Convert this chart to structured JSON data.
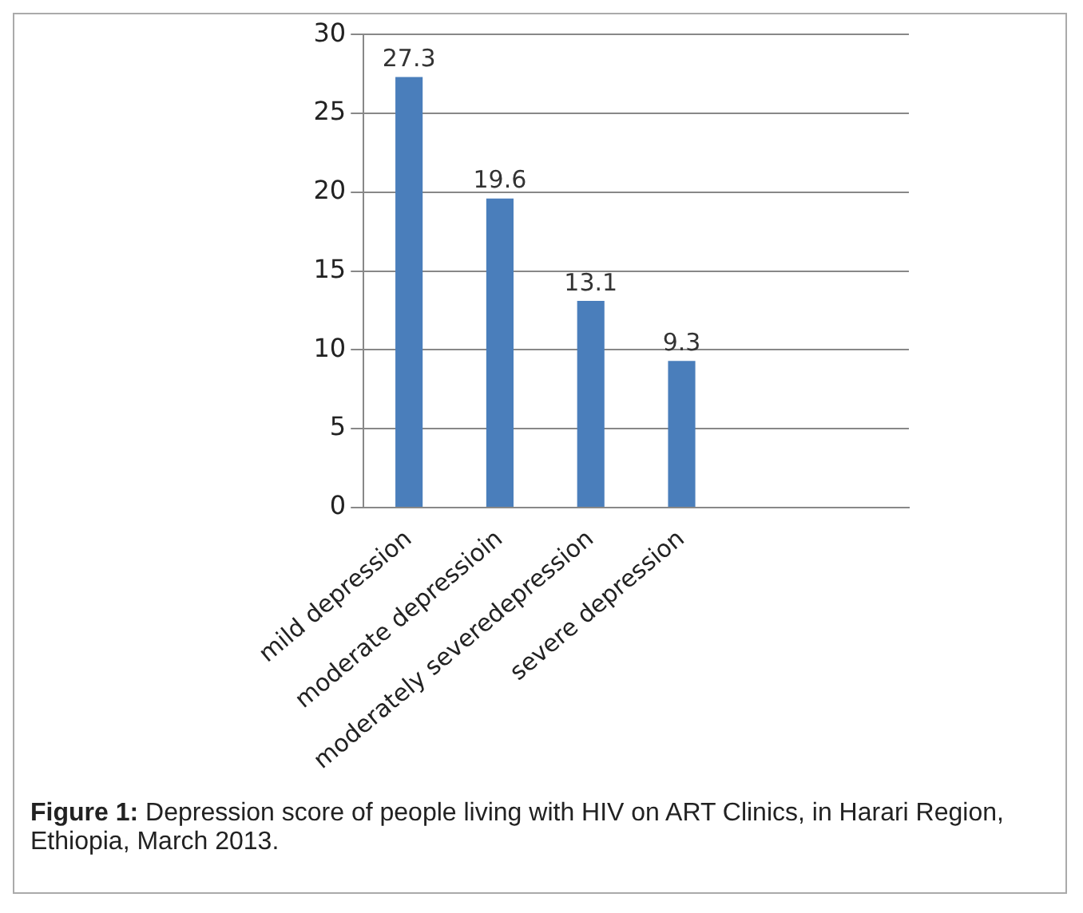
{
  "chart_data": {
    "type": "bar",
    "categories": [
      "mild depression",
      "moderate depressioin",
      "moderately severedepression",
      "severe depression",
      null,
      null
    ],
    "values": [
      27.3,
      19.6,
      13.1,
      9.3,
      null,
      null
    ],
    "color": "#4a7ebb",
    "ylim": [
      0,
      30
    ],
    "yticks": [
      0,
      5,
      10,
      15,
      20,
      25,
      30
    ],
    "grid": "y",
    "data_labels": true,
    "annotations": [
      "Figure 1: Depression score of people living with HIV on ART Clinics, in Harari Region, Ethiopia, March 2013."
    ]
  }
}
